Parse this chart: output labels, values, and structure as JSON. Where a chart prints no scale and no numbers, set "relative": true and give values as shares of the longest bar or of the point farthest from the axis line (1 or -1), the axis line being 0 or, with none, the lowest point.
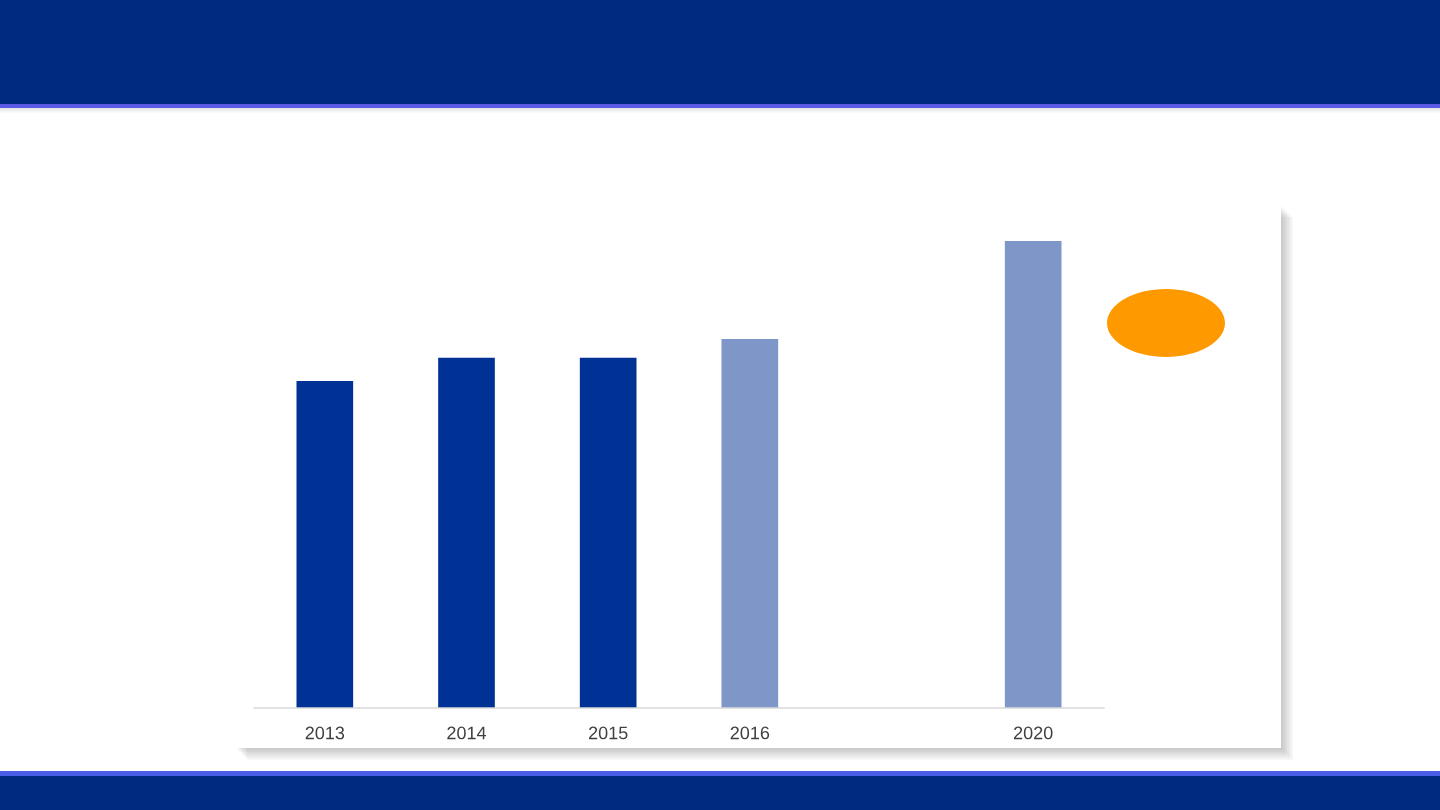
{
  "chart_data": {
    "type": "bar",
    "categories": [
      "2013",
      "2014",
      "2015",
      "2016",
      null,
      "2020"
    ],
    "values": [
      0.7,
      0.75,
      0.75,
      0.79,
      null,
      1
    ],
    "colors": [
      "#003296",
      "#003296",
      "#003296",
      "#7f96c8",
      null,
      "#7f96c8"
    ],
    "relative": true
  }
}
